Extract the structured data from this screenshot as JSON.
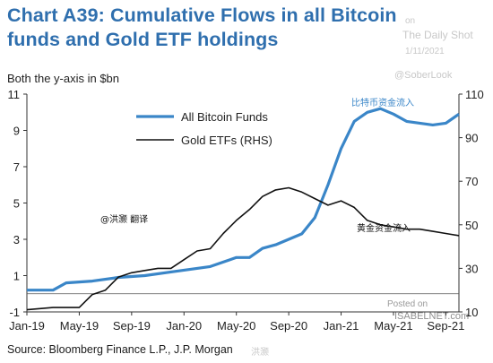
{
  "header": {
    "title": "Chart A39: Cumulative Flows in all Bitcoin funds and Gold ETF holdings",
    "units_note": "Both the y-axis in $bn"
  },
  "watermarks": {
    "posted_on_top": "on",
    "daily_shot": "The Daily Shot",
    "date": "1/11/2021",
    "handle": "@SoberLook",
    "posted_on": "Posted on",
    "isabelnet": "ISABELNET.com",
    "weibo_credit": "@洪灏 翻译",
    "weibo_bottom": "洪灏"
  },
  "source": "Source: Bloomberg Finance L.P., J.P. Morgan",
  "chart_data": {
    "type": "line",
    "x_tick_labels": [
      "Jan-19",
      "May-19",
      "Sep-19",
      "Jan-20",
      "May-20",
      "Sep-20",
      "Jan-21",
      "May-21",
      "Sep-21"
    ],
    "x_range": [
      "2019-01",
      "2021-10"
    ],
    "y_left": {
      "ticks": [
        -1,
        1,
        3,
        5,
        7,
        9,
        11
      ],
      "range": [
        -1,
        11
      ]
    },
    "y_right": {
      "label": "RHS",
      "ticks": [
        10,
        30,
        50,
        70,
        90,
        110
      ],
      "range": [
        10,
        110
      ]
    },
    "grid": false,
    "legend_placement": "top-left",
    "annotations": {
      "bitcoin_cn": "比特币资金流入",
      "gold_cn": "黄金资金流入"
    },
    "series": [
      {
        "name": "All Bitcoin Funds",
        "axis": "left",
        "color": "#3a86c8",
        "points": [
          [
            "2019-01",
            0.2
          ],
          [
            "2019-03",
            0.2
          ],
          [
            "2019-04",
            0.6
          ],
          [
            "2019-06",
            0.7
          ],
          [
            "2019-08",
            0.9
          ],
          [
            "2019-10",
            1.0
          ],
          [
            "2019-12",
            1.2
          ],
          [
            "2020-01",
            1.3
          ],
          [
            "2020-03",
            1.5
          ],
          [
            "2020-05",
            2.0
          ],
          [
            "2020-06",
            2.0
          ],
          [
            "2020-07",
            2.5
          ],
          [
            "2020-08",
            2.7
          ],
          [
            "2020-09",
            3.0
          ],
          [
            "2020-10",
            3.3
          ],
          [
            "2020-11",
            4.2
          ],
          [
            "2020-12",
            6.0
          ],
          [
            "2021-01",
            8.0
          ],
          [
            "2021-02",
            9.5
          ],
          [
            "2021-03",
            10.0
          ],
          [
            "2021-04",
            10.2
          ],
          [
            "2021-05",
            9.9
          ],
          [
            "2021-06",
            9.5
          ],
          [
            "2021-07",
            9.4
          ],
          [
            "2021-08",
            9.3
          ],
          [
            "2021-09",
            9.4
          ],
          [
            "2021-10",
            9.9
          ]
        ]
      },
      {
        "name": "Gold ETFs (RHS)",
        "axis": "right",
        "color": "#111111",
        "points": [
          [
            "2019-01",
            11
          ],
          [
            "2019-03",
            12
          ],
          [
            "2019-05",
            12
          ],
          [
            "2019-06",
            18
          ],
          [
            "2019-07",
            20
          ],
          [
            "2019-08",
            26
          ],
          [
            "2019-09",
            28
          ],
          [
            "2019-10",
            29
          ],
          [
            "2019-11",
            30
          ],
          [
            "2019-12",
            30
          ],
          [
            "2020-01",
            34
          ],
          [
            "2020-02",
            38
          ],
          [
            "2020-03",
            39
          ],
          [
            "2020-04",
            46
          ],
          [
            "2020-05",
            52
          ],
          [
            "2020-06",
            57
          ],
          [
            "2020-07",
            63
          ],
          [
            "2020-08",
            66
          ],
          [
            "2020-09",
            67
          ],
          [
            "2020-10",
            65
          ],
          [
            "2020-11",
            62
          ],
          [
            "2020-12",
            59
          ],
          [
            "2021-01",
            61
          ],
          [
            "2021-02",
            58
          ],
          [
            "2021-03",
            52
          ],
          [
            "2021-04",
            50
          ],
          [
            "2021-05",
            49
          ],
          [
            "2021-06",
            48
          ],
          [
            "2021-07",
            48
          ],
          [
            "2021-08",
            47
          ],
          [
            "2021-09",
            46
          ],
          [
            "2021-10",
            45
          ]
        ]
      }
    ]
  }
}
